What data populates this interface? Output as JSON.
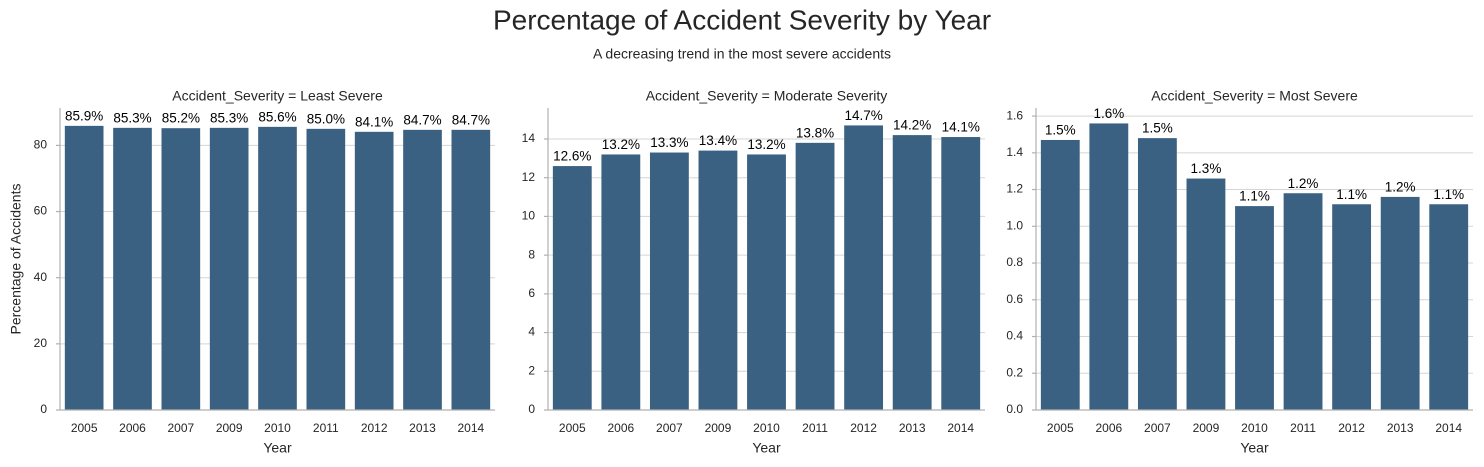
{
  "title": "Percentage of Accident Severity by Year",
  "subtitle": "A decreasing trend in the most severe accidents",
  "chart_data": [
    {
      "type": "bar",
      "title": "Accident_Severity = Least Severe",
      "x_label": "Year",
      "y_label": "Percentage of Accidents",
      "categories": [
        "2005",
        "2006",
        "2007",
        "2009",
        "2010",
        "2011",
        "2012",
        "2013",
        "2014"
      ],
      "values": [
        85.9,
        85.3,
        85.2,
        85.3,
        85.6,
        85.0,
        84.1,
        84.7,
        84.7
      ],
      "value_labels": [
        "85.9%",
        "85.3%",
        "85.2%",
        "85.3%",
        "85.6%",
        "85.0%",
        "84.1%",
        "84.7%",
        "84.7%"
      ],
      "color": "#3b6182",
      "ylim": [
        0,
        91.3
      ],
      "yticks": [
        0,
        20,
        40,
        60,
        80
      ],
      "grid": true
    },
    {
      "type": "bar",
      "title": "Accident_Severity = Moderate Severity",
      "x_label": "Year",
      "categories": [
        "2005",
        "2006",
        "2007",
        "2009",
        "2010",
        "2011",
        "2012",
        "2013",
        "2014"
      ],
      "values": [
        12.6,
        13.2,
        13.3,
        13.4,
        13.2,
        13.8,
        14.7,
        14.2,
        14.1
      ],
      "value_labels": [
        "12.6%",
        "13.2%",
        "13.3%",
        "13.4%",
        "13.2%",
        "13.8%",
        "14.7%",
        "14.2%",
        "14.1%"
      ],
      "color": "#3b6182",
      "ylim": [
        0,
        15.6
      ],
      "yticks": [
        0,
        2,
        4,
        6,
        8,
        10,
        12,
        14
      ],
      "grid": true
    },
    {
      "type": "bar",
      "title": "Accident_Severity = Most Severe",
      "x_label": "Year",
      "categories": [
        "2005",
        "2006",
        "2007",
        "2009",
        "2010",
        "2011",
        "2012",
        "2013",
        "2014"
      ],
      "values": [
        1.47,
        1.56,
        1.48,
        1.26,
        1.11,
        1.18,
        1.12,
        1.16,
        1.12
      ],
      "value_labels": [
        "1.5%",
        "1.6%",
        "1.5%",
        "1.3%",
        "1.1%",
        "1.2%",
        "1.1%",
        "1.2%",
        "1.1%"
      ],
      "color": "#3b6182",
      "ylim": [
        0,
        1.644
      ],
      "yticks": [
        {
          "value": 0,
          "label": "0.0"
        },
        0.2,
        0.4,
        0.6,
        0.8,
        {
          "value": 1,
          "label": "1.0"
        },
        1.2,
        1.4,
        1.6
      ],
      "grid": true
    }
  ]
}
